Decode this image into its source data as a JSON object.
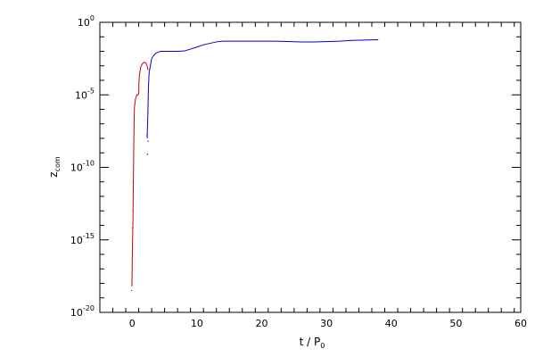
{
  "chart_data": {
    "type": "line",
    "title": "",
    "xlabel_main": "t / P",
    "xlabel_sub": "0",
    "ylabel_main": "z",
    "ylabel_sub": "com",
    "xlim": [
      -5,
      60
    ],
    "ylim_exp": [
      -20,
      0
    ],
    "yscale": "log",
    "grid": false,
    "x_ticks": [
      {
        "value": 0,
        "label": "0"
      },
      {
        "value": 10,
        "label": "10"
      },
      {
        "value": 20,
        "label": "20"
      },
      {
        "value": 30,
        "label": "30"
      },
      {
        "value": 40,
        "label": "40"
      },
      {
        "value": 50,
        "label": "50"
      },
      {
        "value": 60,
        "label": "60"
      }
    ],
    "y_ticks": [
      {
        "value": 0,
        "base": "10",
        "exp": "0"
      },
      {
        "value": -5,
        "base": "10",
        "exp": "-5"
      },
      {
        "value": -10,
        "base": "10",
        "exp": "-10"
      },
      {
        "value": -15,
        "base": "10",
        "exp": "-15"
      },
      {
        "value": -20,
        "base": "10",
        "exp": "-20"
      }
    ],
    "series": [
      {
        "color": "#cc0000",
        "points": [
          [
            -0.05,
            -18.2
          ],
          [
            0.0,
            -16.5
          ],
          [
            0.05,
            -15.0
          ],
          [
            0.1,
            -14.0
          ],
          [
            0.15,
            -12.0
          ],
          [
            0.2,
            -10.0
          ],
          [
            0.25,
            -8.0
          ],
          [
            0.3,
            -6.5
          ],
          [
            0.35,
            -5.8
          ],
          [
            0.5,
            -5.3
          ],
          [
            0.7,
            -5.0
          ],
          [
            0.9,
            -5.0
          ],
          [
            1.0,
            -4.9
          ],
          [
            1.05,
            -4.0
          ],
          [
            1.15,
            -3.5
          ],
          [
            1.3,
            -3.1
          ],
          [
            1.5,
            -2.9
          ],
          [
            1.8,
            -2.75
          ],
          [
            2.1,
            -2.8
          ],
          [
            2.3,
            -3.0
          ],
          [
            2.45,
            -3.3
          ]
        ]
      },
      {
        "color": "#0000cc",
        "points": [
          [
            2.3,
            -8.0
          ],
          [
            2.4,
            -6.5
          ],
          [
            2.5,
            -4.5
          ],
          [
            2.6,
            -3.5
          ],
          [
            2.8,
            -3.0
          ],
          [
            3.0,
            -2.5
          ],
          [
            3.3,
            -2.3
          ],
          [
            3.6,
            -2.15
          ],
          [
            4.0,
            -2.05
          ],
          [
            4.5,
            -2.0
          ],
          [
            5.0,
            -2.0
          ],
          [
            6.0,
            -2.0
          ],
          [
            7.0,
            -2.0
          ],
          [
            8.0,
            -1.98
          ],
          [
            9.0,
            -1.85
          ],
          [
            10.0,
            -1.7
          ],
          [
            11.0,
            -1.55
          ],
          [
            12.0,
            -1.45
          ],
          [
            13.0,
            -1.35
          ],
          [
            14.0,
            -1.3
          ],
          [
            16.0,
            -1.3
          ],
          [
            18.0,
            -1.3
          ],
          [
            20.0,
            -1.3
          ],
          [
            22.0,
            -1.3
          ],
          [
            24.0,
            -1.32
          ],
          [
            26.0,
            -1.35
          ],
          [
            28.0,
            -1.35
          ],
          [
            30.0,
            -1.33
          ],
          [
            32.0,
            -1.3
          ],
          [
            34.0,
            -1.25
          ],
          [
            36.0,
            -1.22
          ],
          [
            38.0,
            -1.2
          ]
        ]
      }
    ],
    "scatter_points": [
      {
        "color": "#cc0000",
        "x": -0.1,
        "y": -18.5
      },
      {
        "color": "#cc0000",
        "x": 0.05,
        "y": -14.2
      },
      {
        "color": "#cc0000",
        "x": 0.1,
        "y": -13.0
      },
      {
        "color": "#cc0000",
        "x": 0.15,
        "y": -11.0
      },
      {
        "color": "#0000cc",
        "x": 2.45,
        "y": -8.2
      },
      {
        "color": "#0000cc",
        "x": 2.3,
        "y": -7.8
      },
      {
        "color": "#000000",
        "x": 2.35,
        "y": -9.1
      }
    ]
  }
}
